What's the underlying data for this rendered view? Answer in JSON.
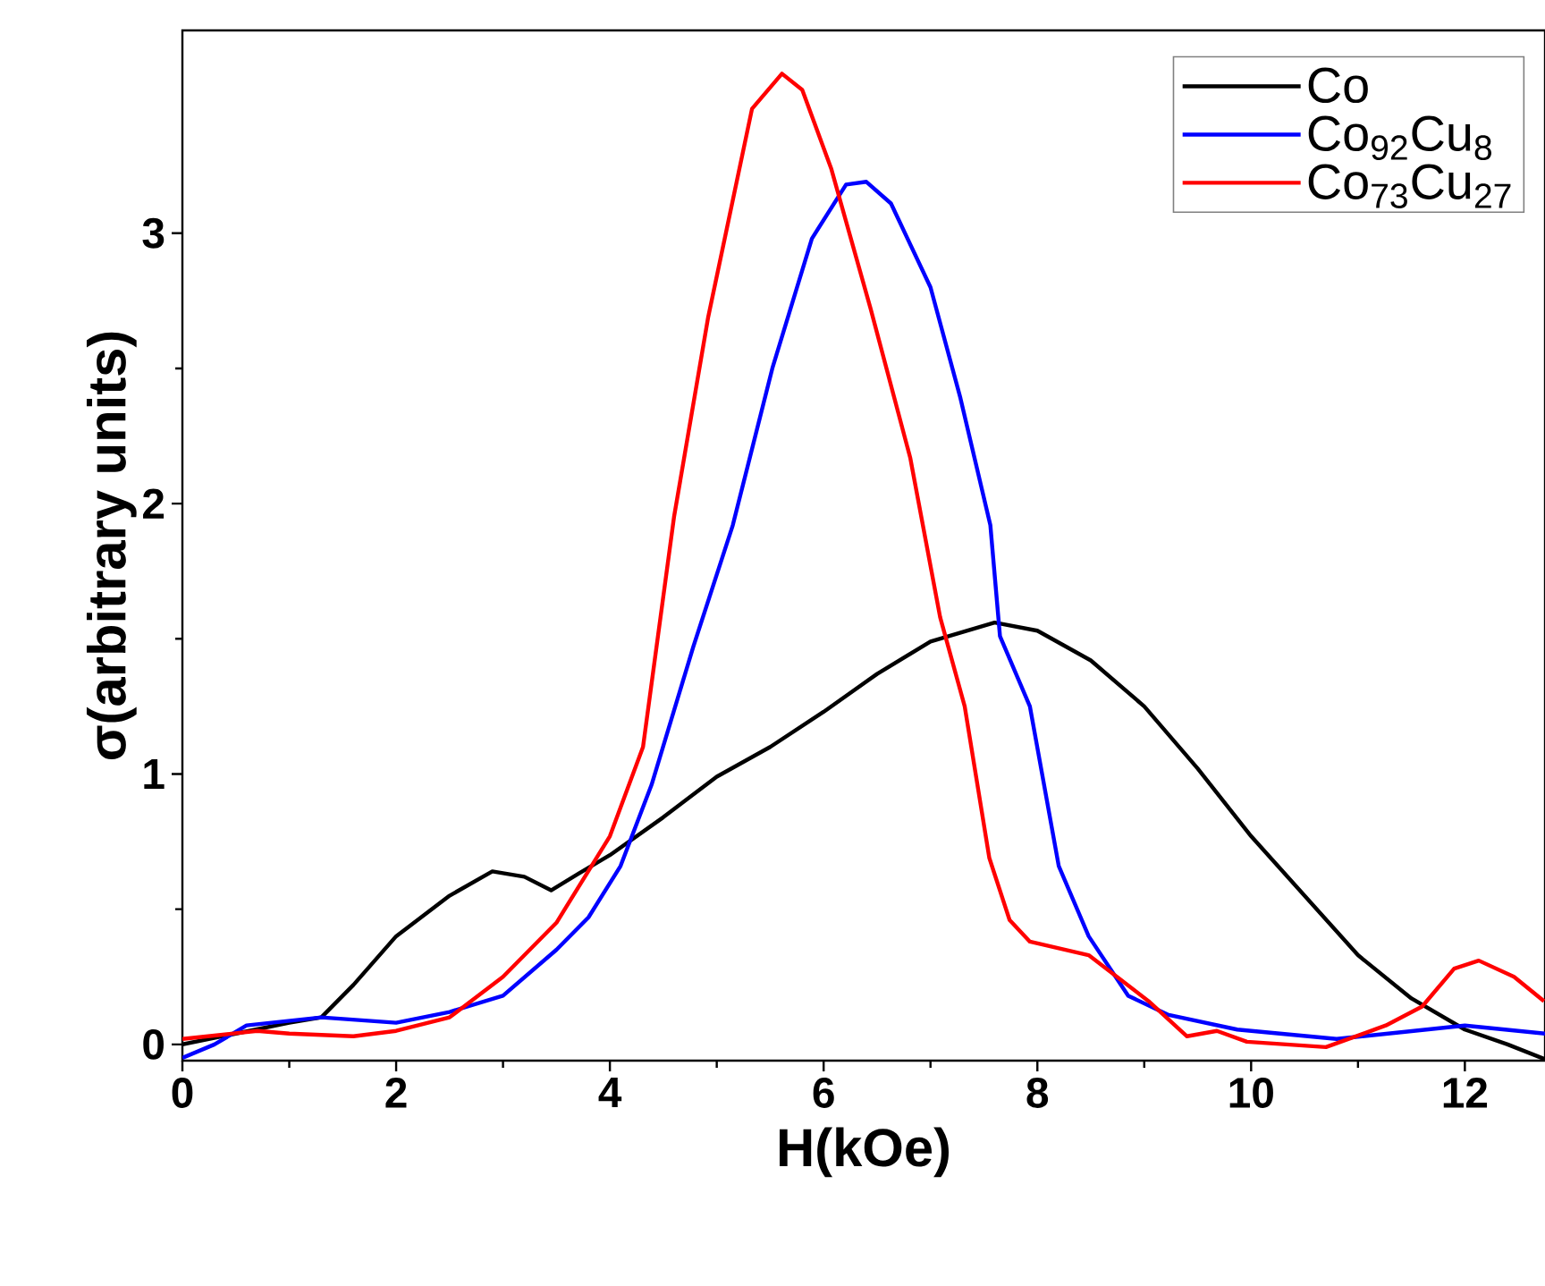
{
  "chart_data": {
    "type": "line",
    "xlabel": "H(kOe)",
    "ylabel": "σ(arbitrary units)",
    "xlim": [
      0,
      12.75
    ],
    "ylim": [
      -0.06,
      3.75
    ],
    "xticks": [
      0,
      2,
      4,
      6,
      8,
      10,
      12
    ],
    "yticks": [
      0,
      1,
      2,
      3
    ],
    "legend": "top right",
    "grid": false,
    "series": [
      {
        "name": "Co",
        "color": "#000000",
        "x": [
          0,
          0.5,
          1,
          1.3,
          1.6,
          2,
          2.5,
          2.9,
          3.2,
          3.45,
          3.7,
          4,
          4.5,
          5,
          5.5,
          6,
          6.5,
          7,
          7.6,
          8,
          8.5,
          9,
          9.5,
          10,
          10.5,
          11,
          11.5,
          12,
          12.4,
          12.75
        ],
        "values": [
          0.0,
          0.04,
          0.08,
          0.1,
          0.22,
          0.4,
          0.55,
          0.64,
          0.62,
          0.57,
          0.63,
          0.7,
          0.84,
          0.99,
          1.1,
          1.23,
          1.37,
          1.49,
          1.56,
          1.53,
          1.42,
          1.25,
          1.02,
          0.77,
          0.55,
          0.33,
          0.17,
          0.055,
          0.0,
          -0.055
        ]
      },
      {
        "name": "Co$_{92}$Cu$_{8}$",
        "color": "#0000ff",
        "x": [
          0,
          0.3,
          0.6,
          1.3,
          2,
          2.5,
          3,
          3.5,
          3.8,
          4.1,
          4.39,
          4.78,
          5.15,
          5.52,
          5.89,
          6.21,
          6.4,
          6.63,
          7.0,
          7.28,
          7.56,
          7.65,
          7.93,
          8.2,
          8.48,
          8.85,
          9.22,
          9.87,
          10.8,
          12.0,
          12.75
        ],
        "values": [
          -0.05,
          0.0,
          0.07,
          0.1,
          0.08,
          0.12,
          0.18,
          0.35,
          0.47,
          0.66,
          0.96,
          1.47,
          1.92,
          2.5,
          2.98,
          3.18,
          3.19,
          3.11,
          2.8,
          2.39,
          1.92,
          1.51,
          1.25,
          0.66,
          0.4,
          0.18,
          0.11,
          0.055,
          0.02,
          0.07,
          0.04
        ]
      },
      {
        "name": "Co$_{73}$Cu$_{27}$",
        "color": "#ff0000",
        "x": [
          0,
          0.7,
          1.0,
          1.6,
          2.0,
          2.5,
          3,
          3.5,
          4,
          4.31,
          4.6,
          4.92,
          5.33,
          5.61,
          5.8,
          6.07,
          6.44,
          6.81,
          7.09,
          7.32,
          7.55,
          7.74,
          7.93,
          8.48,
          9.04,
          9.4,
          9.68,
          9.96,
          10.7,
          11.26,
          11.6,
          11.9,
          12.13,
          12.46,
          12.74
        ],
        "values": [
          0.02,
          0.05,
          0.04,
          0.03,
          0.05,
          0.1,
          0.25,
          0.45,
          0.77,
          1.1,
          1.95,
          2.69,
          3.46,
          3.59,
          3.53,
          3.24,
          2.72,
          2.17,
          1.58,
          1.25,
          0.69,
          0.46,
          0.38,
          0.33,
          0.16,
          0.03,
          0.05,
          0.01,
          -0.01,
          0.07,
          0.14,
          0.28,
          0.31,
          0.25,
          0.16
        ]
      }
    ]
  }
}
